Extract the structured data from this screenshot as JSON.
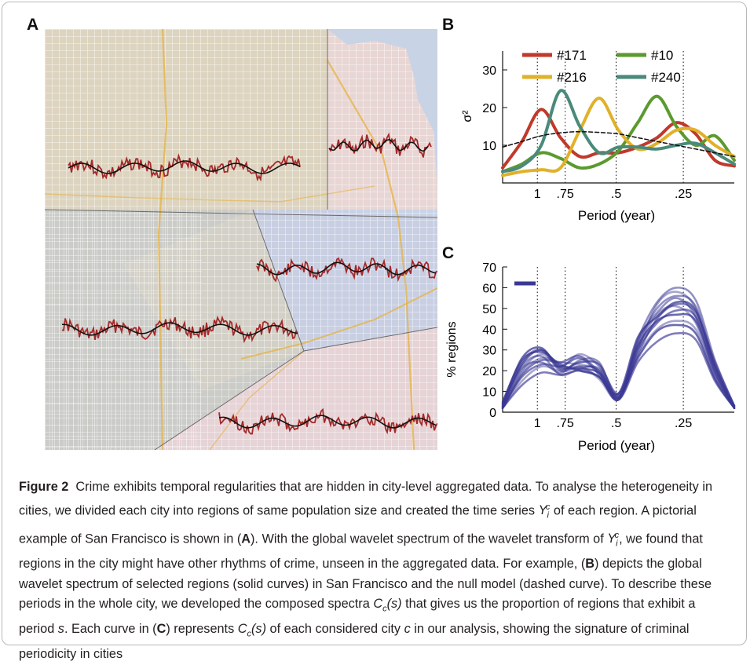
{
  "panels": {
    "a": "A",
    "b": "B",
    "c": "C"
  },
  "chart_data": [
    {
      "type": "line",
      "panel": "B",
      "xlabel": "Period (year)",
      "ylabel": "σ²",
      "x_tick_labels": [
        "1",
        ".75",
        ".5",
        ".25"
      ],
      "y_ticks": [
        10,
        20,
        30
      ],
      "ylim": [
        0,
        35
      ],
      "legend": [
        "#171",
        "#10",
        "#216",
        "#240"
      ],
      "legend_placement": "top",
      "series": [
        {
          "name": "#171",
          "color": "#c0392b",
          "values": [
            4,
            11,
            19.5,
            12,
            7,
            8,
            8,
            9.5,
            12,
            16,
            13,
            6,
            4.5
          ]
        },
        {
          "name": "#10",
          "color": "#5b9a2f",
          "values": [
            3,
            5,
            8,
            6.5,
            4,
            5,
            8.5,
            16,
            23,
            15,
            10,
            12.5,
            6
          ]
        },
        {
          "name": "#216",
          "color": "#e0b12a",
          "values": [
            2,
            3,
            3.5,
            4,
            14,
            22.5,
            14,
            9,
            10.5,
            14,
            14,
            10,
            7
          ]
        },
        {
          "name": "#240",
          "color": "#4a8a7a",
          "values": [
            3,
            4.5,
            10,
            24.5,
            15,
            8,
            9.5,
            9.5,
            9,
            10,
            10.5,
            8,
            5
          ]
        },
        {
          "name": "null model",
          "color": "#111111",
          "dashed": true,
          "values": [
            9.5,
            11,
            12.5,
            13.3,
            13.6,
            13.4,
            13,
            12,
            11,
            10,
            9,
            8,
            7
          ]
        }
      ]
    },
    {
      "type": "line",
      "panel": "C",
      "xlabel": "Period (year)",
      "ylabel": "% regions",
      "x_tick_labels": [
        "1",
        ".75",
        ".5",
        ".25"
      ],
      "y_ticks": [
        0,
        10,
        20,
        30,
        40,
        50,
        60,
        70
      ],
      "ylim": [
        0,
        70
      ],
      "color": "#3a3894",
      "series": [
        {
          "values": [
            2,
            20,
            28,
            22,
            28,
            22,
            8,
            30,
            52,
            58,
            50,
            22,
            2
          ]
        },
        {
          "values": [
            3,
            24,
            30,
            20,
            22,
            20,
            6,
            34,
            48,
            55,
            46,
            20,
            2
          ]
        },
        {
          "values": [
            2,
            18,
            25,
            24,
            27,
            19,
            7,
            28,
            45,
            52,
            48,
            24,
            3
          ]
        },
        {
          "values": [
            4,
            26,
            31,
            21,
            24,
            23,
            9,
            32,
            44,
            47,
            44,
            19,
            2
          ]
        },
        {
          "values": [
            2,
            15,
            22,
            20,
            22,
            16,
            6,
            27,
            40,
            44,
            40,
            17,
            2
          ]
        },
        {
          "values": [
            3,
            22,
            27,
            18,
            21,
            21,
            8,
            35,
            53,
            60,
            54,
            25,
            3
          ]
        },
        {
          "values": [
            2,
            17,
            23,
            22,
            26,
            18,
            6,
            30,
            43,
            49,
            46,
            21,
            2
          ]
        },
        {
          "values": [
            5,
            25,
            29,
            23,
            20,
            17,
            7,
            26,
            39,
            42,
            38,
            16,
            2
          ]
        },
        {
          "values": [
            2,
            19,
            26,
            24,
            23,
            20,
            8,
            31,
            47,
            51,
            43,
            18,
            3
          ]
        },
        {
          "values": [
            3,
            21,
            24,
            19,
            25,
            24,
            7,
            33,
            50,
            56,
            51,
            23,
            2
          ]
        },
        {
          "values": [
            2,
            13,
            19,
            18,
            20,
            17,
            6,
            24,
            34,
            38,
            35,
            15,
            2
          ]
        },
        {
          "values": [
            4,
            23,
            30,
            22,
            21,
            19,
            9,
            36,
            46,
            53,
            49,
            22,
            3
          ]
        }
      ]
    }
  ],
  "caption": {
    "label": "Figure 2",
    "p1": "Crime exhibits temporal regularities that are hidden in city-level aggregated data. To analyse the heterogeneity in cities, we divided each city into regions of same population size and created the time series",
    "y_base": "Y",
    "y_sub": "i",
    "y_sup": "c",
    "p2": "of each region. A pictorial example of San Francisco is shown in (",
    "ref_a": "A",
    "p3": "). With the global wavelet spectrum of the wavelet transform of",
    "p4": ", we found that regions in the city might have other rhythms of crime, unseen in the aggregated data. For example, (",
    "ref_b": "B",
    "p5": ") depicts the global wavelet spectrum of selected regions (solid curves) in San Francisco and the null model (dashed curve). To describe these periods in the whole city, we developed the composed spectra",
    "cc_base": "C",
    "cc_sub": "c",
    "cc_arg": "(s)",
    "p6": "that gives us the proportion of regions that exhibit a period",
    "s": "s",
    "p7": ". Each curve in (",
    "ref_c": "C",
    "p8": ") represents",
    "p9": "of each considered city",
    "c": "c",
    "p10": "in our analysis, showing the signature of criminal periodicity in cities"
  }
}
